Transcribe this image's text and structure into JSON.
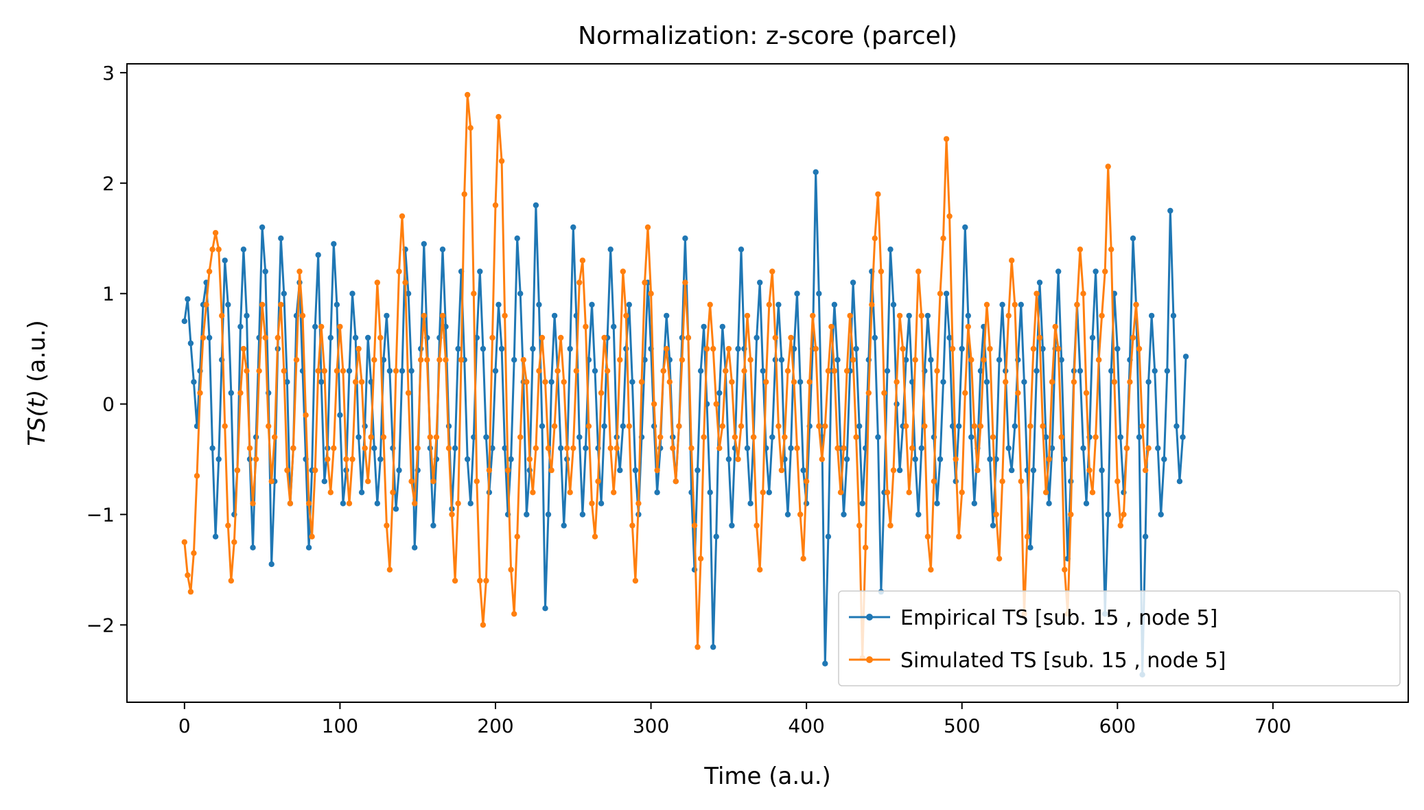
{
  "chart_data": {
    "type": "line",
    "title": "Normalization: z-score (parcel)",
    "xlabel": "Time (a.u.)",
    "ylabel_italic": "TS(t)",
    "ylabel_rest": " (a.u.)",
    "xlim": [
      -37,
      787
    ],
    "ylim": [
      -2.7,
      3.08
    ],
    "xticks": [
      0,
      100,
      200,
      300,
      400,
      500,
      600,
      700
    ],
    "xtick_labels": [
      "0",
      "100",
      "200",
      "300",
      "400",
      "500",
      "600",
      "700"
    ],
    "yticks": [
      -2,
      -1,
      0,
      1,
      2,
      3
    ],
    "ytick_labels": [
      "−2",
      "−1",
      "0",
      "1",
      "2",
      "3"
    ],
    "legend": {
      "placement": "lower-right"
    },
    "series": [
      {
        "name": "Empirical TS [sub. 15 , node 5]",
        "color": "#1f77b4",
        "x_start": 0,
        "x_step": 2,
        "values": [
          0.75,
          0.95,
          0.55,
          0.2,
          -0.2,
          0.3,
          0.9,
          1.1,
          0.6,
          -0.4,
          -1.2,
          -0.5,
          0.4,
          1.3,
          0.9,
          0.1,
          -1.0,
          -0.6,
          0.7,
          1.4,
          0.8,
          -0.5,
          -1.3,
          -0.3,
          0.6,
          1.6,
          1.2,
          0.1,
          -1.45,
          -0.7,
          0.5,
          1.5,
          1.0,
          0.2,
          -0.9,
          -0.4,
          0.8,
          1.1,
          0.3,
          -0.5,
          -1.3,
          -0.6,
          0.7,
          1.35,
          0.2,
          -0.7,
          -0.4,
          0.6,
          1.45,
          0.9,
          -0.1,
          -0.9,
          -0.6,
          0.3,
          1.0,
          0.6,
          -0.3,
          -0.8,
          -0.2,
          0.6,
          0.2,
          -0.4,
          -0.9,
          -0.5,
          0.4,
          0.8,
          0.3,
          -0.4,
          -0.95,
          -0.6,
          0.3,
          1.4,
          1.0,
          0.3,
          -1.3,
          -0.6,
          0.5,
          1.45,
          0.6,
          -0.4,
          -1.1,
          -0.5,
          0.6,
          1.4,
          0.7,
          -0.2,
          -0.95,
          -0.4,
          0.5,
          1.2,
          0.4,
          -0.5,
          -0.9,
          -0.3,
          0.6,
          1.2,
          0.5,
          -0.3,
          -0.8,
          -0.4,
          0.3,
          0.9,
          0.5,
          -0.4,
          -1.0,
          -0.5,
          0.4,
          1.5,
          1.0,
          0.2,
          -1.0,
          -0.6,
          0.5,
          1.8,
          0.9,
          -0.2,
          -1.85,
          -1.0,
          0.2,
          0.8,
          0.3,
          -0.4,
          -1.1,
          -0.5,
          0.5,
          1.6,
          0.8,
          -0.3,
          -1.0,
          -0.4,
          0.4,
          0.9,
          0.3,
          -0.4,
          -0.9,
          -0.2,
          0.6,
          1.4,
          0.7,
          -0.3,
          -0.6,
          -0.2,
          0.5,
          0.9,
          0.2,
          -0.6,
          -1.0,
          -0.3,
          0.4,
          1.1,
          0.5,
          -0.2,
          -0.8,
          -0.4,
          0.3,
          0.8,
          0.4,
          -0.3,
          -0.7,
          -0.2,
          0.6,
          1.5,
          0.6,
          -0.8,
          -1.5,
          -0.6,
          0.3,
          0.7,
          0.0,
          -0.8,
          -2.2,
          -1.2,
          0.1,
          0.7,
          0.3,
          -0.5,
          -1.1,
          -0.4,
          0.5,
          1.4,
          0.5,
          -0.4,
          -0.9,
          -0.3,
          0.6,
          1.1,
          0.3,
          -0.4,
          -0.8,
          -0.3,
          0.4,
          0.9,
          0.4,
          -0.5,
          -1.0,
          -0.4,
          0.5,
          1.0,
          0.2,
          -0.6,
          -0.9,
          -0.2,
          0.5,
          2.1,
          1.0,
          -0.3,
          -2.35,
          -1.2,
          0.3,
          0.9,
          0.4,
          -0.4,
          -1.0,
          -0.5,
          0.3,
          1.1,
          0.5,
          -0.2,
          -0.9,
          -0.4,
          0.4,
          1.2,
          0.6,
          -0.3,
          -1.7,
          -0.8,
          0.3,
          1.4,
          0.9,
          0.0,
          -0.6,
          -0.2,
          0.4,
          0.8,
          0.2,
          -0.5,
          -1.0,
          -0.4,
          0.3,
          0.8,
          0.4,
          -0.3,
          -0.9,
          -0.5,
          0.2,
          1.0,
          0.6,
          -0.2,
          -0.7,
          -0.2,
          0.5,
          1.6,
          0.8,
          -0.3,
          -0.9,
          -0.4,
          0.3,
          0.7,
          0.2,
          -0.5,
          -1.1,
          -0.5,
          0.4,
          0.9,
          0.3,
          -0.4,
          -0.6,
          -0.2,
          0.4,
          0.9,
          0.2,
          -0.6,
          -1.3,
          -0.6,
          0.3,
          1.1,
          0.5,
          -0.3,
          -0.9,
          -0.4,
          0.5,
          1.2,
          0.4,
          -0.5,
          -1.4,
          -0.7,
          0.3,
          0.9,
          0.3,
          -0.4,
          -0.9,
          -0.3,
          0.6,
          1.2,
          0.4,
          -0.6,
          -1.9,
          -1.0,
          0.3,
          1.0,
          0.5,
          -0.3,
          -0.8,
          -0.4,
          0.4,
          1.5,
          0.9,
          -0.3,
          -2.45,
          -1.2,
          0.2,
          0.8,
          0.3,
          -0.4,
          -1.0,
          -0.5,
          0.3,
          1.75,
          0.8,
          -0.2,
          -0.7,
          -0.3,
          0.43
        ]
      },
      {
        "name": "Simulated TS [sub. 15 , node 5]",
        "color": "#ff7f0e",
        "x_start": 0,
        "x_step": 2,
        "values": [
          -1.25,
          -1.55,
          -1.7,
          -1.35,
          -0.65,
          0.1,
          0.6,
          0.9,
          1.2,
          1.4,
          1.55,
          1.4,
          0.8,
          -0.2,
          -1.1,
          -1.6,
          -1.25,
          -0.6,
          0.1,
          0.5,
          0.3,
          -0.4,
          -0.9,
          -0.5,
          0.3,
          0.9,
          0.6,
          -0.2,
          -0.7,
          -0.3,
          0.6,
          0.9,
          0.3,
          -0.6,
          -0.9,
          -0.4,
          0.4,
          1.2,
          0.8,
          -0.1,
          -0.9,
          -1.2,
          -0.6,
          0.3,
          0.7,
          0.3,
          -0.5,
          -0.8,
          -0.4,
          0.3,
          0.7,
          0.3,
          -0.5,
          -0.9,
          -0.5,
          0.2,
          0.5,
          0.2,
          -0.4,
          -0.7,
          -0.3,
          0.4,
          1.1,
          0.6,
          -0.3,
          -1.1,
          -1.5,
          -0.8,
          0.3,
          1.2,
          1.7,
          1.1,
          0.1,
          -0.7,
          -0.9,
          -0.4,
          0.4,
          0.8,
          0.4,
          -0.3,
          -0.7,
          -0.3,
          0.4,
          0.8,
          0.4,
          -0.4,
          -1.0,
          -1.6,
          -0.9,
          0.4,
          1.9,
          2.8,
          2.5,
          1.0,
          -0.7,
          -1.6,
          -2.0,
          -1.6,
          -0.6,
          0.6,
          1.8,
          2.6,
          2.2,
          0.8,
          -0.6,
          -1.5,
          -1.9,
          -1.2,
          -0.3,
          0.4,
          0.2,
          -0.5,
          -0.8,
          -0.4,
          0.3,
          0.6,
          0.2,
          -0.4,
          -0.6,
          -0.2,
          0.3,
          0.6,
          0.2,
          -0.4,
          -0.8,
          -0.4,
          0.3,
          1.1,
          1.3,
          0.7,
          -0.2,
          -0.9,
          -1.2,
          -0.7,
          0.1,
          0.6,
          0.3,
          -0.4,
          -0.8,
          -0.4,
          0.4,
          1.2,
          0.8,
          -0.2,
          -1.1,
          -1.6,
          -0.9,
          0.2,
          1.1,
          1.6,
          1.0,
          0.0,
          -0.6,
          -0.3,
          0.3,
          0.5,
          0.2,
          -0.4,
          -0.7,
          -0.2,
          0.4,
          1.1,
          0.6,
          -0.4,
          -1.1,
          -2.2,
          -1.4,
          -0.3,
          0.5,
          0.9,
          0.5,
          0.0,
          -0.4,
          -0.2,
          0.3,
          0.5,
          0.2,
          -0.3,
          -0.5,
          -0.2,
          0.3,
          0.8,
          0.4,
          -0.3,
          -1.1,
          -1.5,
          -0.8,
          0.2,
          0.9,
          1.2,
          0.6,
          -0.2,
          -0.6,
          -0.3,
          0.3,
          0.6,
          0.2,
          -0.4,
          -1.0,
          -1.4,
          -0.7,
          0.2,
          0.8,
          0.5,
          -0.2,
          -0.5,
          -0.2,
          0.3,
          0.7,
          0.3,
          -0.4,
          -0.8,
          -0.4,
          0.3,
          0.8,
          0.4,
          -0.3,
          -1.1,
          -2.3,
          -1.3,
          0.1,
          0.9,
          1.5,
          1.9,
          1.2,
          0.1,
          -0.8,
          -1.1,
          -0.6,
          0.2,
          0.8,
          0.5,
          -0.2,
          -0.8,
          -0.4,
          0.4,
          1.2,
          0.8,
          -0.2,
          -1.2,
          -1.5,
          -0.7,
          0.3,
          1.0,
          1.5,
          2.4,
          1.7,
          0.5,
          -0.5,
          -1.2,
          -0.8,
          0.1,
          0.7,
          0.4,
          -0.2,
          -0.6,
          -0.2,
          0.4,
          0.9,
          0.5,
          -0.3,
          -1.0,
          -1.4,
          -0.7,
          0.2,
          0.8,
          1.3,
          0.9,
          0.1,
          -0.7,
          -1.9,
          -1.2,
          -0.2,
          0.5,
          1.0,
          0.6,
          -0.2,
          -0.8,
          -0.5,
          0.2,
          0.7,
          0.5,
          -0.3,
          -1.5,
          -1.9,
          -1.0,
          0.2,
          0.9,
          1.4,
          1.0,
          0.1,
          -0.6,
          -0.8,
          -0.3,
          0.4,
          0.8,
          1.2,
          2.15,
          1.4,
          0.2,
          -0.7,
          -1.1,
          -1.0,
          -0.4,
          0.2,
          0.6,
          0.9,
          0.5,
          -0.2,
          -0.6,
          -0.4
        ]
      }
    ]
  }
}
